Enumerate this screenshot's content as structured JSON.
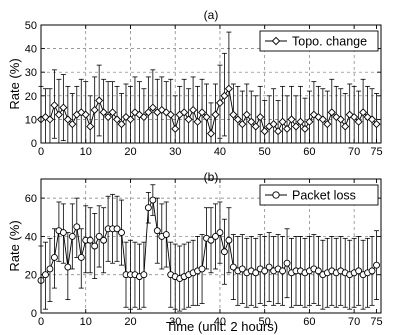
{
  "figure": {
    "xlabel": "Time (unit: 2 hours)"
  },
  "chart_data": [
    {
      "type": "line",
      "panel_label": "(a)",
      "ylabel": "Rate (%)",
      "ylim": [
        0,
        50
      ],
      "yticks": [
        0,
        10,
        20,
        30,
        40,
        50
      ],
      "xlim": [
        0,
        76
      ],
      "xticks": [
        0,
        10,
        20,
        30,
        40,
        50,
        60,
        70,
        75
      ],
      "grid": true,
      "legend_position": "top-right",
      "series": [
        {
          "name": "Topo. change",
          "marker": "diamond",
          "x": [
            0,
            1,
            2,
            3,
            4,
            5,
            6,
            7,
            8,
            9,
            10,
            11,
            12,
            13,
            14,
            15,
            16,
            17,
            18,
            19,
            20,
            21,
            22,
            23,
            24,
            25,
            26,
            27,
            28,
            29,
            30,
            31,
            32,
            33,
            34,
            35,
            36,
            37,
            38,
            39,
            40,
            41,
            42,
            43,
            44,
            45,
            46,
            47,
            48,
            49,
            50,
            51,
            52,
            53,
            54,
            55,
            56,
            57,
            58,
            59,
            60,
            61,
            62,
            63,
            64,
            65,
            66,
            67,
            68,
            69,
            70,
            71,
            72,
            73,
            74,
            75
          ],
          "values": [
            10,
            11,
            10,
            16,
            12,
            15,
            10,
            8,
            12,
            13,
            12,
            7,
            14,
            18,
            13,
            11,
            13,
            10,
            8,
            11,
            10,
            13,
            12,
            11,
            13,
            15,
            13,
            14,
            13,
            12,
            6,
            12,
            13,
            10,
            14,
            9,
            13,
            11,
            4,
            12,
            17,
            20,
            23,
            12,
            10,
            8,
            12,
            9,
            7,
            11,
            5,
            7,
            8,
            5,
            9,
            6,
            10,
            7,
            9,
            6,
            9,
            12,
            11,
            10,
            8,
            13,
            11,
            10,
            7,
            12,
            11,
            9,
            13,
            11,
            10,
            8
          ],
          "error_upper": [
            24,
            23,
            23,
            31,
            27,
            29,
            24,
            21,
            24,
            27,
            26,
            20,
            28,
            33,
            27,
            26,
            26,
            24,
            21,
            25,
            24,
            28,
            26,
            23,
            28,
            31,
            27,
            28,
            26,
            27,
            20,
            24,
            27,
            23,
            28,
            24,
            27,
            25,
            17,
            25,
            33,
            38,
            47,
            25,
            24,
            22,
            25,
            22,
            20,
            24,
            18,
            20,
            23,
            18,
            24,
            20,
            24,
            20,
            24,
            19,
            22,
            26,
            24,
            23,
            22,
            27,
            24,
            23,
            21,
            25,
            24,
            22,
            27,
            24,
            23,
            21
          ],
          "error_lower": [
            0,
            0,
            0,
            2,
            0,
            1,
            0,
            0,
            0,
            0,
            0,
            0,
            0,
            3,
            0,
            0,
            0,
            0,
            0,
            0,
            0,
            0,
            0,
            0,
            0,
            0,
            0,
            0,
            0,
            0,
            0,
            0,
            0,
            0,
            0,
            0,
            0,
            0,
            0,
            0,
            2,
            3,
            0,
            0,
            0,
            0,
            0,
            0,
            0,
            0,
            0,
            0,
            0,
            0,
            0,
            0,
            0,
            0,
            0,
            0,
            0,
            0,
            0,
            0,
            0,
            0,
            0,
            0,
            0,
            0,
            0,
            0,
            0,
            0,
            0,
            0
          ]
        }
      ]
    },
    {
      "type": "line",
      "panel_label": "(b)",
      "ylabel": "Rate (%)",
      "ylim": [
        0,
        70
      ],
      "yticks": [
        0,
        20,
        40,
        60
      ],
      "xlim": [
        0,
        76
      ],
      "xticks": [
        0,
        10,
        20,
        30,
        40,
        50,
        60,
        70,
        75
      ],
      "grid": true,
      "legend_position": "top-right",
      "series": [
        {
          "name": "Packet loss",
          "marker": "circle",
          "x": [
            0,
            1,
            2,
            3,
            4,
            5,
            6,
            7,
            8,
            9,
            10,
            11,
            12,
            13,
            14,
            15,
            16,
            17,
            18,
            19,
            20,
            21,
            22,
            23,
            24,
            25,
            26,
            27,
            28,
            29,
            30,
            31,
            32,
            33,
            34,
            35,
            36,
            37,
            38,
            39,
            40,
            41,
            42,
            43,
            44,
            45,
            46,
            47,
            48,
            49,
            50,
            51,
            52,
            53,
            54,
            55,
            56,
            57,
            58,
            59,
            60,
            61,
            62,
            63,
            64,
            65,
            66,
            67,
            68,
            69,
            70,
            71,
            72,
            73,
            74,
            75
          ],
          "values": [
            17,
            20,
            23,
            29,
            43,
            42,
            24,
            40,
            45,
            29,
            38,
            38,
            35,
            40,
            38,
            44,
            44,
            44,
            42,
            20,
            20,
            20,
            19,
            20,
            55,
            59,
            43,
            40,
            41,
            20,
            19,
            18,
            19,
            20,
            21,
            22,
            23,
            39,
            38,
            40,
            42,
            32,
            38,
            24,
            22,
            23,
            21,
            22,
            21,
            23,
            22,
            24,
            22,
            23,
            22,
            26,
            21,
            22,
            22,
            21,
            22,
            23,
            22,
            20,
            21,
            22,
            21,
            22,
            21,
            20,
            21,
            22,
            20,
            21,
            22,
            25
          ],
          "error_upper": [
            35,
            37,
            39,
            44,
            58,
            57,
            42,
            57,
            60,
            44,
            56,
            55,
            52,
            56,
            55,
            61,
            62,
            61,
            59,
            37,
            38,
            37,
            36,
            37,
            63,
            67,
            60,
            57,
            58,
            37,
            36,
            35,
            36,
            37,
            38,
            40,
            41,
            55,
            55,
            57,
            58,
            49,
            55,
            41,
            40,
            41,
            39,
            40,
            39,
            41,
            40,
            42,
            40,
            41,
            40,
            44,
            39,
            40,
            40,
            39,
            40,
            41,
            40,
            38,
            39,
            40,
            39,
            40,
            39,
            38,
            39,
            40,
            38,
            39,
            40,
            43
          ],
          "error_lower": [
            0,
            2,
            6,
            13,
            27,
            26,
            7,
            23,
            29,
            13,
            21,
            21,
            18,
            24,
            21,
            27,
            26,
            27,
            25,
            3,
            2,
            3,
            2,
            3,
            47,
            51,
            26,
            23,
            24,
            3,
            2,
            1,
            2,
            3,
            4,
            4,
            5,
            23,
            21,
            23,
            26,
            15,
            21,
            7,
            4,
            5,
            3,
            4,
            3,
            5,
            4,
            6,
            4,
            5,
            4,
            8,
            3,
            4,
            4,
            3,
            4,
            5,
            4,
            2,
            3,
            4,
            3,
            4,
            3,
            2,
            3,
            4,
            2,
            3,
            4,
            7
          ]
        }
      ]
    }
  ]
}
